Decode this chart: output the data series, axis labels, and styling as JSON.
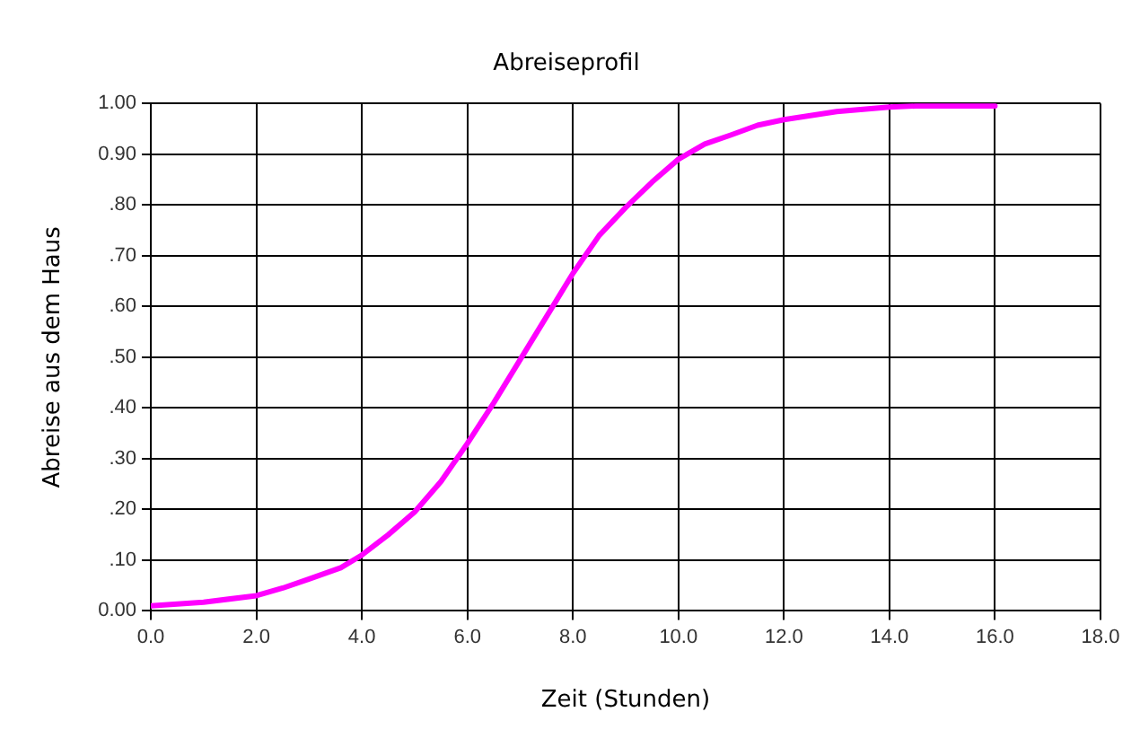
{
  "chart_data": {
    "type": "line",
    "title": "Abreiseprofil",
    "xlabel": "Zeit (Stunden)",
    "ylabel": "Abreise aus dem Haus",
    "series": [
      {
        "color": "#ff00ff",
        "x": [
          0,
          1,
          2,
          2.5,
          3,
          3.6,
          4,
          4.5,
          5,
          5.5,
          6,
          6.5,
          7,
          7.5,
          8,
          8.5,
          9,
          9.5,
          10,
          10.5,
          11,
          11.5,
          12,
          13,
          14,
          14.5,
          15,
          16
        ],
        "values": [
          0.01,
          0.017,
          0.03,
          0.045,
          0.063,
          0.085,
          0.11,
          0.15,
          0.195,
          0.255,
          0.33,
          0.41,
          0.495,
          0.58,
          0.665,
          0.74,
          0.795,
          0.845,
          0.89,
          0.92,
          0.938,
          0.957,
          0.968,
          0.984,
          0.993,
          0.995,
          0.995,
          0.995
        ]
      }
    ],
    "xlim": [
      0,
      18
    ],
    "xticks": [
      {
        "value": 0,
        "label": "0.0"
      },
      {
        "value": 2,
        "label": "2.0"
      },
      {
        "value": 4,
        "label": "4.0"
      },
      {
        "value": 6,
        "label": "6.0"
      },
      {
        "value": 8,
        "label": "8.0"
      },
      {
        "value": 10,
        "label": "10.0"
      },
      {
        "value": 12,
        "label": "12.0"
      },
      {
        "value": 14,
        "label": "14.0"
      },
      {
        "value": 16,
        "label": "16.0"
      },
      {
        "value": 18,
        "label": "18.0"
      }
    ],
    "ylim": [
      0,
      1
    ],
    "yticks": [
      {
        "value": 0,
        "label": "0.00"
      },
      {
        "value": 0.1,
        "label": ".10"
      },
      {
        "value": 0.2,
        "label": ".20"
      },
      {
        "value": 0.3,
        "label": ".30"
      },
      {
        "value": 0.4,
        "label": ".40"
      },
      {
        "value": 0.5,
        "label": ".50"
      },
      {
        "value": 0.6,
        "label": ".60"
      },
      {
        "value": 0.7,
        "label": ".70"
      },
      {
        "value": 0.8,
        "label": ".80"
      },
      {
        "value": 0.9,
        "label": "0.90"
      },
      {
        "value": 1,
        "label": "1.00"
      }
    ],
    "grid": true,
    "legend": false,
    "marker": "none",
    "line_style": "solid"
  }
}
